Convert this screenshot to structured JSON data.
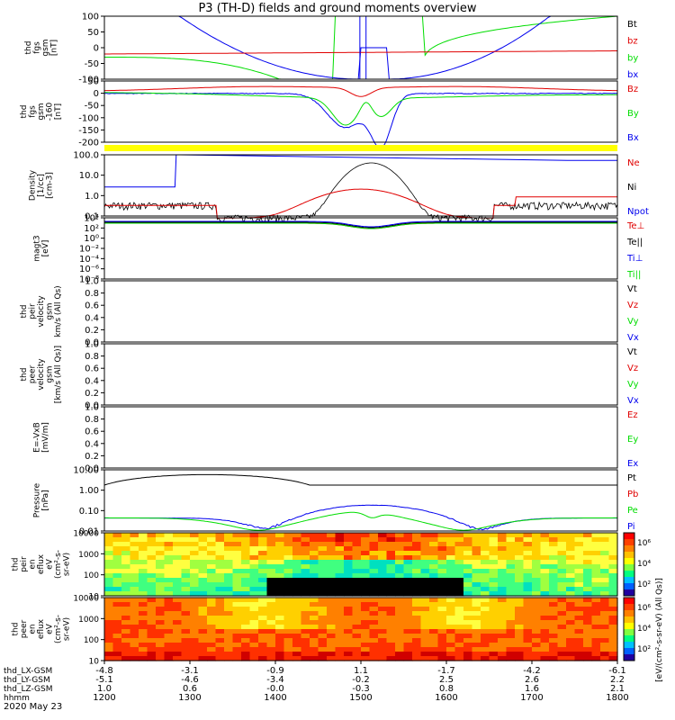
{
  "title": "P3 (TH-D) fields and ground moments overview",
  "colors": {
    "black": "#000000",
    "red": "#e00000",
    "green": "#00dd00",
    "blue": "#0000ee",
    "yellow": "#ffff00"
  },
  "chart_data": [
    {
      "type": "line",
      "ylabel": [
        "thd",
        "fgs",
        "gsm",
        "[nT]"
      ],
      "ylim": [
        -100,
        100
      ],
      "yticks": [
        "100",
        "50",
        "0",
        "-50",
        "-100"
      ],
      "legend": [
        {
          "text": "Bt",
          "color": "black"
        },
        {
          "text": "bz",
          "color": "red"
        },
        {
          "text": "by",
          "color": "green"
        },
        {
          "text": "bx",
          "color": "blue"
        }
      ]
    },
    {
      "type": "line",
      "ylabel": [
        "thd",
        "fgs",
        "gsm",
        "-160",
        "[nT]"
      ],
      "ylim": [
        -220,
        50
      ],
      "yticks": [
        "50",
        "0",
        "-50",
        "-100",
        "-150",
        "-200"
      ],
      "legend": [
        {
          "text": "Bz",
          "color": "red"
        },
        {
          "text": "By",
          "color": "green"
        },
        {
          "text": "Bx",
          "color": "blue"
        }
      ]
    },
    {
      "type": "line",
      "ylabel": [
        "Density",
        "[1/cc]",
        "[cm-3]"
      ],
      "scale": "log",
      "yticks": [
        "100.0",
        "10.0",
        "1.0",
        "0.1"
      ],
      "legend": [
        {
          "text": "Ne",
          "color": "red"
        },
        {
          "text": "Ni",
          "color": "black"
        },
        {
          "text": "Npot",
          "color": "blue"
        }
      ]
    },
    {
      "type": "line",
      "ylabel": [
        "magt3",
        "[eV]"
      ],
      "scale": "log",
      "yticks": [
        "10⁴",
        "10²",
        "10⁰",
        "10⁻²",
        "10⁻⁴",
        "10⁻⁶",
        "10⁻⁸"
      ],
      "legend": [
        {
          "text": "Te⊥",
          "color": "red"
        },
        {
          "text": "Te||",
          "color": "black"
        },
        {
          "text": "Ti⊥",
          "color": "blue"
        },
        {
          "text": "Ti||",
          "color": "green"
        }
      ]
    },
    {
      "type": "line",
      "ylabel": [
        "thd",
        "peir",
        "velocity",
        "gsm",
        "km/s (All Qs)"
      ],
      "ylim": [
        0,
        1
      ],
      "yticks": [
        "1.0",
        "0.8",
        "0.6",
        "0.4",
        "0.2",
        "0.0"
      ],
      "legend": [
        {
          "text": "Vt",
          "color": "black"
        },
        {
          "text": "Vz",
          "color": "red"
        },
        {
          "text": "Vy",
          "color": "green"
        },
        {
          "text": "Vx",
          "color": "blue"
        }
      ]
    },
    {
      "type": "line",
      "ylabel": [
        "thd",
        "peer",
        "velocity",
        "gsm",
        "[km/s (All Qs)]"
      ],
      "ylim": [
        0,
        1
      ],
      "yticks": [
        "1.0",
        "0.8",
        "0.6",
        "0.4",
        "0.2",
        "0.0"
      ],
      "legend": [
        {
          "text": "Vt",
          "color": "black"
        },
        {
          "text": "Vz",
          "color": "red"
        },
        {
          "text": "Vy",
          "color": "green"
        },
        {
          "text": "Vx",
          "color": "blue"
        }
      ]
    },
    {
      "type": "line",
      "ylabel": [
        "E=-VxB",
        "[mV/m]"
      ],
      "ylim": [
        0,
        1
      ],
      "yticks": [
        "1.0",
        "0.8",
        "0.6",
        "0.4",
        "0.2",
        "0.0"
      ],
      "legend": [
        {
          "text": "Ez",
          "color": "red"
        },
        {
          "text": "Ey",
          "color": "green"
        },
        {
          "text": "Ex",
          "color": "blue"
        }
      ]
    },
    {
      "type": "line",
      "ylabel": [
        "Pressure",
        "[nPa]"
      ],
      "scale": "log",
      "yticks": [
        "10.00",
        "1.00",
        "0.10",
        "0.01"
      ],
      "legend": [
        {
          "text": "Pt",
          "color": "black"
        },
        {
          "text": "Pb",
          "color": "red"
        },
        {
          "text": "Pe",
          "color": "green"
        },
        {
          "text": "Pi",
          "color": "blue"
        }
      ]
    },
    {
      "type": "heatmap",
      "ylabel": [
        "thd",
        "peir",
        "en",
        "eflux",
        "eV",
        "(cm²-s-",
        "sr-eV)"
      ],
      "yticks": [
        "10000",
        "1000",
        "100",
        "10"
      ],
      "colorbar_ticks": [
        "10⁶",
        "10⁴",
        "10²"
      ]
    },
    {
      "type": "heatmap",
      "ylabel": [
        "thd",
        "peer",
        "en",
        "eflux",
        "eV",
        "(cm²-s-",
        "sr-eV)"
      ],
      "yticks": [
        "10000",
        "1000",
        "100",
        "10"
      ],
      "colorbar_ticks": [
        "10⁶",
        "10⁴",
        "10²"
      ]
    }
  ],
  "colorbar_label": "[eV/(cm²-s-sr-eV) (All Qs)]",
  "xaxis": {
    "ticks": [
      "1200",
      "1300",
      "1400",
      "1500",
      "1600",
      "1700",
      "1800"
    ],
    "rows": [
      {
        "label": "thd_LX-GSM",
        "values": [
          "-4.8",
          "-3.1",
          "-0.9",
          "1.1",
          "-1.7",
          "-4.2",
          "-6.1"
        ]
      },
      {
        "label": "thd_LY-GSM",
        "values": [
          "-5.1",
          "-4.6",
          "-3.4",
          "-0.2",
          "2.5",
          "2.6",
          "2.2"
        ]
      },
      {
        "label": "thd_LZ-GSM",
        "values": [
          "1.0",
          "0.6",
          "-0.0",
          "-0.3",
          "0.8",
          "1.6",
          "2.1"
        ]
      },
      {
        "label": "hhmm",
        "values": [
          "1200",
          "1300",
          "1400",
          "1500",
          "1600",
          "1700",
          "1800"
        ]
      }
    ],
    "date": "2020 May 23"
  }
}
